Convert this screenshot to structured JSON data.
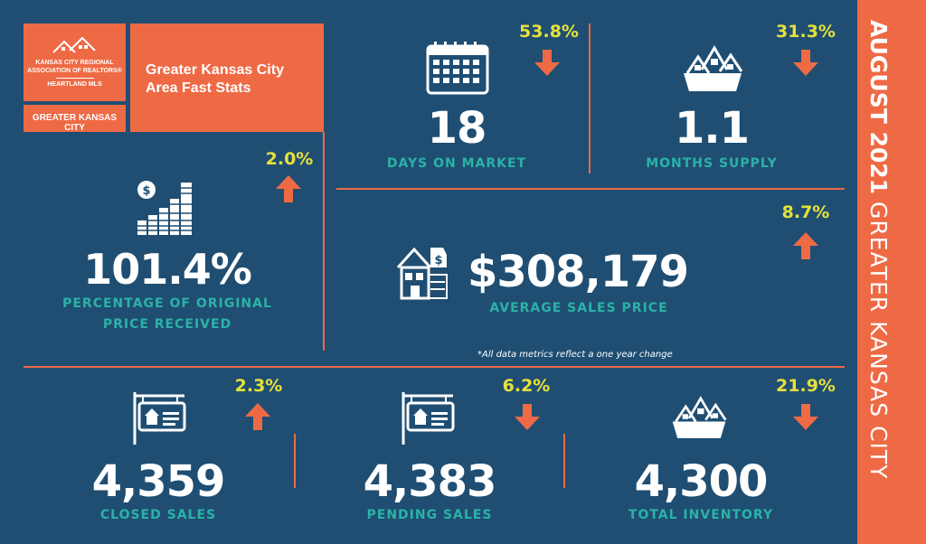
{
  "header": {
    "logo_line1": "KANSAS CITY REGIONAL",
    "logo_line2": "ASSOCIATION OF REALTORS®",
    "logo_line3": "HEARTLAND MLS",
    "region_label": "GREATER KANSAS CITY",
    "title": "Greater Kansas City Area Fast Stats"
  },
  "sidebar": {
    "month": "AUGUST 2021",
    "region": "GREATER KANSAS CITY"
  },
  "note": "*All data metrics reflect a one year change",
  "colors": {
    "background": "#1f4e72",
    "accent": "#ee6a45",
    "label": "#2bb2a6",
    "change": "#e6e13c",
    "value": "#ffffff"
  },
  "stats": {
    "days_on_market": {
      "value": "18",
      "label": "DAYS ON MARKET",
      "change": "53.8%",
      "direction": "down",
      "icon": "calendar-icon"
    },
    "months_supply": {
      "value": "1.1",
      "label": "MONTHS SUPPLY",
      "change": "31.3%",
      "direction": "down",
      "icon": "houses-box-icon"
    },
    "pct_original": {
      "value": "101.4%",
      "label_line1": "PERCENTAGE OF ORIGINAL",
      "label_line2": "PRICE RECEIVED",
      "change": "2.0%",
      "direction": "up",
      "icon": "coin-stack-icon"
    },
    "avg_price": {
      "value": "$308,179",
      "label": "AVERAGE SALES PRICE",
      "change": "8.7%",
      "direction": "up",
      "icon": "house-price-tag-icon"
    },
    "closed_sales": {
      "value": "4,359",
      "label": "CLOSED SALES",
      "change": "2.3%",
      "direction": "up",
      "icon": "sale-sign-icon"
    },
    "pending_sales": {
      "value": "4,383",
      "label": "PENDING SALES",
      "change": "6.2%",
      "direction": "down",
      "icon": "sale-sign-icon"
    },
    "total_inventory": {
      "value": "4,300",
      "label": "TOTAL INVENTORY",
      "change": "21.9%",
      "direction": "down",
      "icon": "houses-box-icon"
    }
  }
}
